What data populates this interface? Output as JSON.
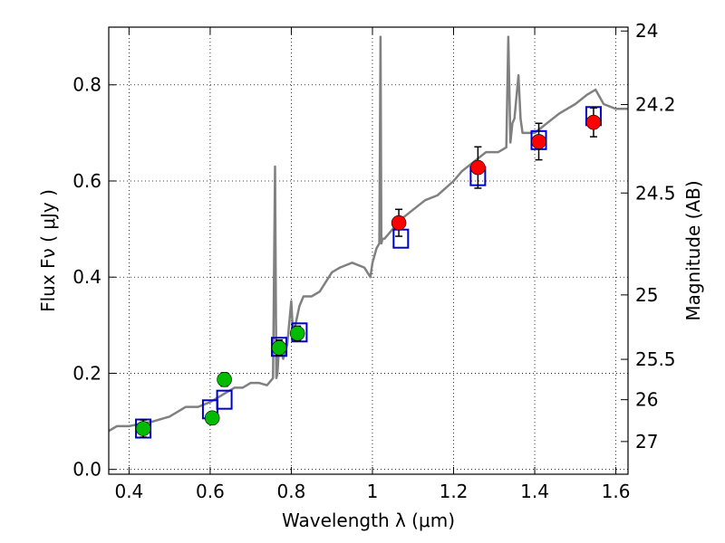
{
  "chart_data": {
    "type": "scatter",
    "xlabel": "Wavelength  λ (μm)",
    "ylabel": "Flux  Fν  ( μJy )",
    "y2label": "Magnitude (AB)",
    "xlim": [
      0.35,
      1.63
    ],
    "ylim": [
      -0.01,
      0.92
    ],
    "xticks": [
      0.4,
      0.6,
      0.8,
      1.0,
      1.2,
      1.4,
      1.6
    ],
    "xtick_labels": [
      "0.4",
      "0.6",
      "0.8",
      "1",
      "1.2",
      "1.4",
      "1.6"
    ],
    "yticks": [
      0.0,
      0.2,
      0.4,
      0.6,
      0.8
    ],
    "ytick_labels": [
      "0.0",
      "0.2",
      "0.4",
      "0.6",
      "0.8"
    ],
    "y2ticks": [
      {
        "label": "24",
        "flux": 0.912
      },
      {
        "label": "24.2",
        "flux": 0.759
      },
      {
        "label": "24.5",
        "flux": 0.575
      },
      {
        "label": "25",
        "flux": 0.363
      },
      {
        "label": "25.5",
        "flux": 0.229
      },
      {
        "label": "26",
        "flux": 0.145
      },
      {
        "label": "27",
        "flux": 0.058
      }
    ],
    "grid": true,
    "series": [
      {
        "kind": "line",
        "color": "#808080",
        "x": [
          0.35,
          0.37,
          0.4,
          0.43,
          0.46,
          0.5,
          0.54,
          0.57,
          0.6,
          0.62,
          0.64,
          0.66,
          0.68,
          0.7,
          0.72,
          0.74,
          0.755,
          0.76,
          0.763,
          0.766,
          0.77,
          0.78,
          0.79,
          0.8,
          0.805,
          0.81,
          0.82,
          0.83,
          0.85,
          0.87,
          0.9,
          0.92,
          0.95,
          0.98,
          0.995,
          1.0,
          1.01,
          1.017,
          1.02,
          1.022,
          1.025,
          1.03,
          1.05,
          1.07,
          1.1,
          1.13,
          1.16,
          1.2,
          1.22,
          1.25,
          1.28,
          1.31,
          1.33,
          1.335,
          1.34,
          1.345,
          1.35,
          1.36,
          1.365,
          1.37,
          1.38,
          1.4,
          1.43,
          1.46,
          1.5,
          1.53,
          1.55,
          1.57,
          1.6,
          1.63
        ],
        "y": [
          0.08,
          0.09,
          0.09,
          0.095,
          0.1,
          0.11,
          0.13,
          0.13,
          0.14,
          0.15,
          0.16,
          0.17,
          0.17,
          0.18,
          0.18,
          0.175,
          0.19,
          0.63,
          0.19,
          0.2,
          0.26,
          0.23,
          0.26,
          0.35,
          0.27,
          0.3,
          0.34,
          0.36,
          0.36,
          0.37,
          0.41,
          0.42,
          0.43,
          0.42,
          0.4,
          0.43,
          0.46,
          0.47,
          0.9,
          0.47,
          0.48,
          0.48,
          0.5,
          0.52,
          0.54,
          0.56,
          0.57,
          0.6,
          0.62,
          0.64,
          0.66,
          0.66,
          0.67,
          0.9,
          0.68,
          0.72,
          0.73,
          0.82,
          0.73,
          0.7,
          0.7,
          0.7,
          0.72,
          0.74,
          0.76,
          0.78,
          0.79,
          0.76,
          0.75,
          0.75
        ]
      },
      {
        "kind": "open-squares",
        "color": "#0000cc",
        "x": [
          0.435,
          0.6,
          0.635,
          0.77,
          0.82,
          1.07,
          1.26,
          1.41,
          1.545
        ],
        "y": [
          0.085,
          0.125,
          0.145,
          0.255,
          0.285,
          0.48,
          0.61,
          0.685,
          0.735
        ]
      },
      {
        "kind": "points",
        "color": "#00bb00",
        "x": [
          0.435,
          0.605,
          0.635,
          0.77,
          0.815
        ],
        "y": [
          0.085,
          0.107,
          0.187,
          0.253,
          0.283
        ],
        "yerr": [
          0.018,
          0.01,
          0.014,
          0.016,
          0.015
        ]
      },
      {
        "kind": "points",
        "color": "#ff0000",
        "x": [
          1.065,
          1.26,
          1.41,
          1.545
        ],
        "y": [
          0.513,
          0.628,
          0.682,
          0.722
        ],
        "yerr": [
          0.028,
          0.043,
          0.038,
          0.03
        ]
      }
    ]
  }
}
